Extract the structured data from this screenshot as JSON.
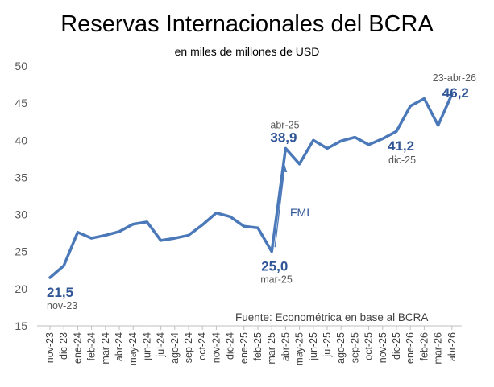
{
  "chart_data": {
    "type": "line",
    "title": "Reservas Internacionales del BCRA",
    "subtitle": "en miles de millones de USD",
    "source": "Fuente:  Econométrica en base al BCRA",
    "ylim": [
      15,
      50
    ],
    "yticks": [
      15,
      20,
      25,
      30,
      35,
      40,
      45,
      50
    ],
    "categories": [
      "nov-23",
      "dic-23",
      "ene-24",
      "feb-24",
      "mar-24",
      "abr-24",
      "may-24",
      "jun-24",
      "jul-24",
      "ago-24",
      "sep-24",
      "oct-24",
      "nov-24",
      "dic-24",
      "ene-25",
      "feb-25",
      "mar-25",
      "abr-25",
      "may-25",
      "jun-25",
      "jul-25",
      "ago-25",
      "sep-25",
      "oct-25",
      "nov-25",
      "dic-25",
      "ene-26",
      "feb-26",
      "mar-26",
      "abr-26"
    ],
    "series": [
      {
        "name": "Reservas",
        "color": "#4A78B8",
        "values": [
          21.5,
          23.1,
          27.6,
          26.8,
          27.2,
          27.7,
          28.7,
          29.0,
          26.5,
          26.8,
          27.2,
          28.6,
          30.2,
          29.7,
          28.4,
          28.2,
          25.0,
          38.9,
          36.8,
          40.0,
          38.9,
          39.9,
          40.4,
          39.4,
          40.2,
          41.2,
          44.6,
          45.6,
          42.0,
          46.2
        ]
      }
    ],
    "annotations": [
      {
        "index": 0,
        "value_label": "21,5",
        "date_label": "nov-23"
      },
      {
        "index": 16,
        "value_label": "25,0",
        "date_label": "mar-25"
      },
      {
        "index": 17,
        "value_label": "38,9",
        "date_label": "abr-25"
      },
      {
        "index": 25,
        "value_label": "41,2",
        "date_label": "dic-25"
      },
      {
        "index": 29,
        "value_label": "46,2",
        "date_label": "23-abr-26"
      }
    ],
    "arrow_label": "FMI",
    "arrow_color": "#4A78B8"
  }
}
